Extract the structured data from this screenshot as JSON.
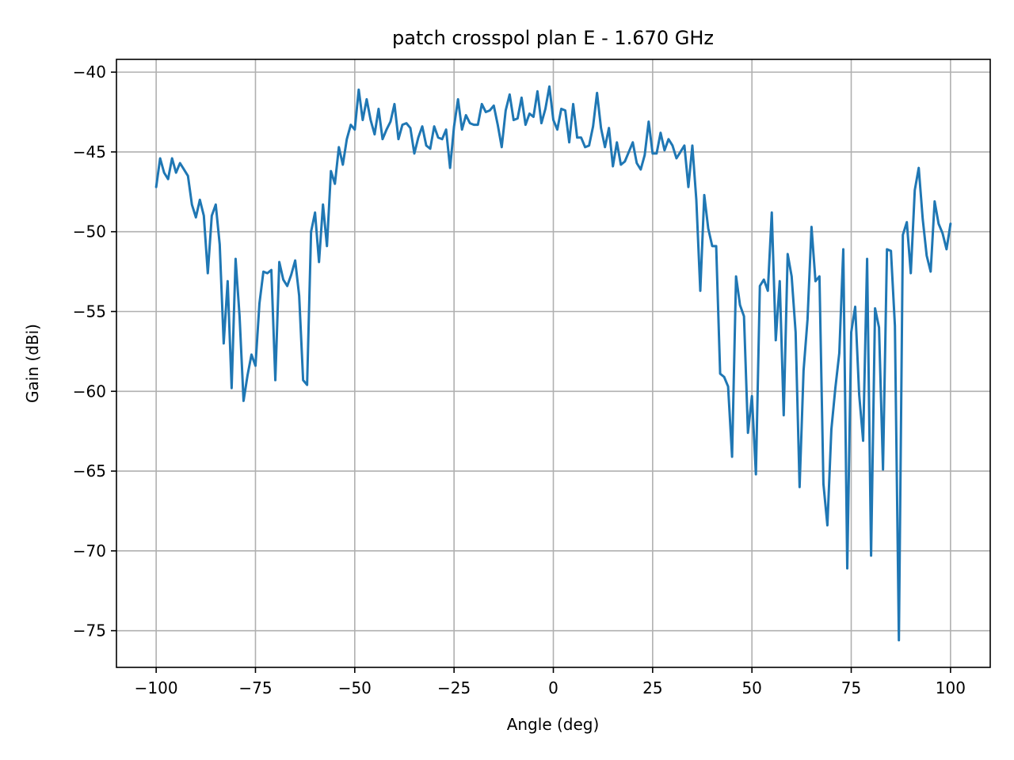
{
  "chart_data": {
    "type": "line",
    "title": "patch crosspol plan E - 1.670 GHz",
    "xlabel": "Angle (deg)",
    "ylabel": "Gain (dBi)",
    "xlim": [
      -110,
      110
    ],
    "ylim": [
      -77.3,
      -39.2
    ],
    "grid": true,
    "series_color": "#1f77b4",
    "x_ticks": [
      {
        "value": -100,
        "label": "−100"
      },
      {
        "value": -75,
        "label": "−75"
      },
      {
        "value": -50,
        "label": "−50"
      },
      {
        "value": -25,
        "label": "−25"
      },
      {
        "value": 0,
        "label": "0"
      },
      {
        "value": 25,
        "label": "25"
      },
      {
        "value": 50,
        "label": "50"
      },
      {
        "value": 75,
        "label": "75"
      },
      {
        "value": 100,
        "label": "100"
      }
    ],
    "y_ticks": [
      {
        "value": -40,
        "label": "−40"
      },
      {
        "value": -45,
        "label": "−45"
      },
      {
        "value": -50,
        "label": "−50"
      },
      {
        "value": -55,
        "label": "−55"
      },
      {
        "value": -60,
        "label": "−60"
      },
      {
        "value": -65,
        "label": "−65"
      },
      {
        "value": -70,
        "label": "−70"
      },
      {
        "value": -75,
        "label": "−75"
      }
    ],
    "series": [
      {
        "x": [
          -100,
          -99,
          -98,
          -97,
          -96,
          -95,
          -94,
          -93,
          -92,
          -91,
          -90,
          -89,
          -88,
          -87,
          -86,
          -85,
          -84,
          -83,
          -82,
          -81,
          -80,
          -79,
          -78,
          -77,
          -76,
          -75,
          -74,
          -73,
          -72,
          -71,
          -70,
          -69,
          -68,
          -67,
          -66,
          -65,
          -64,
          -63,
          -62,
          -61,
          -60,
          -59,
          -58,
          -57,
          -56,
          -55,
          -54,
          -53,
          -52,
          -51,
          -50,
          -49,
          -48,
          -47,
          -46,
          -45,
          -44,
          -43,
          -42,
          -41,
          -40,
          -39,
          -38,
          -37,
          -36,
          -35,
          -34,
          -33,
          -32,
          -31,
          -30,
          -29,
          -28,
          -27,
          -26,
          -25,
          -24,
          -23,
          -22,
          -21,
          -20,
          -19,
          -18,
          -17,
          -16,
          -15,
          -14,
          -13,
          -12,
          -11,
          -10,
          -9,
          -8,
          -7,
          -6,
          -5,
          -4,
          -3,
          -2,
          -1,
          0,
          1,
          2,
          3,
          4,
          5,
          6,
          7,
          8,
          9,
          10,
          11,
          12,
          13,
          14,
          15,
          16,
          17,
          18,
          19,
          20,
          21,
          22,
          23,
          24,
          25,
          26,
          27,
          28,
          29,
          30,
          31,
          32,
          33,
          34,
          35,
          36,
          37,
          38,
          39,
          40,
          41,
          42,
          43,
          44,
          45,
          46,
          47,
          48,
          49,
          50,
          51,
          52,
          53,
          54,
          55,
          56,
          57,
          58,
          59,
          60,
          61,
          62,
          63,
          64,
          65,
          66,
          67,
          68,
          69,
          70,
          71,
          72,
          73,
          74,
          75,
          76,
          77,
          78,
          79,
          80,
          81,
          82,
          83,
          84,
          85,
          86,
          87,
          88,
          89,
          90,
          91,
          92,
          93,
          94,
          95,
          96,
          97,
          98,
          99,
          100
        ],
        "y": [
          -47.2,
          -45.4,
          -46.3,
          -46.7,
          -45.4,
          -46.3,
          -45.7,
          -46.1,
          -46.5,
          -48.3,
          -49.1,
          -48.0,
          -49.0,
          -52.6,
          -49.0,
          -48.3,
          -50.8,
          -57.0,
          -53.1,
          -59.8,
          -51.7,
          -55.3,
          -60.6,
          -59.0,
          -57.7,
          -58.4,
          -54.5,
          -52.5,
          -52.6,
          -52.4,
          -59.3,
          -51.9,
          -53.0,
          -53.4,
          -52.7,
          -51.8,
          -54.0,
          -59.3,
          -59.6,
          -50.0,
          -48.8,
          -51.9,
          -48.3,
          -50.9,
          -46.2,
          -47.0,
          -44.7,
          -45.8,
          -44.2,
          -43.3,
          -43.6,
          -41.1,
          -43.0,
          -41.7,
          -43.0,
          -43.9,
          -42.3,
          -44.2,
          -43.6,
          -43.1,
          -42.0,
          -44.2,
          -43.3,
          -43.2,
          -43.5,
          -45.1,
          -44.1,
          -43.4,
          -44.6,
          -44.8,
          -43.4,
          -44.1,
          -44.2,
          -43.6,
          -46.0,
          -43.4,
          -41.7,
          -43.6,
          -42.7,
          -43.2,
          -43.3,
          -43.3,
          -42.0,
          -42.5,
          -42.4,
          -42.1,
          -43.3,
          -44.7,
          -42.4,
          -41.4,
          -43.0,
          -42.9,
          -41.6,
          -43.3,
          -42.6,
          -42.8,
          -41.2,
          -43.2,
          -42.3,
          -40.9,
          -43.0,
          -43.6,
          -42.3,
          -42.4,
          -44.4,
          -42.0,
          -44.1,
          -44.1,
          -44.7,
          -44.6,
          -43.4,
          -41.3,
          -43.5,
          -44.7,
          -43.5,
          -45.9,
          -44.4,
          -45.8,
          -45.6,
          -45.0,
          -44.4,
          -45.7,
          -46.1,
          -45.2,
          -43.1,
          -45.1,
          -45.1,
          -43.8,
          -44.9,
          -44.2,
          -44.6,
          -45.4,
          -45.0,
          -44.6,
          -47.2,
          -44.6,
          -48.0,
          -53.7,
          -47.7,
          -49.8,
          -50.9,
          -50.9,
          -58.9,
          -59.1,
          -59.7,
          -64.1,
          -52.8,
          -54.6,
          -55.3,
          -62.6,
          -60.3,
          -65.2,
          -53.4,
          -53.0,
          -53.7,
          -48.8,
          -56.8,
          -53.1,
          -61.5,
          -51.4,
          -52.8,
          -56.3,
          -66.0,
          -58.7,
          -55.5,
          -49.7,
          -53.1,
          -52.8,
          -65.8,
          -68.4,
          -62.4,
          -59.8,
          -57.6,
          -51.1,
          -71.1,
          -56.3,
          -54.7,
          -60.2,
          -63.1,
          -51.7,
          -70.3,
          -54.8,
          -56.0,
          -64.9,
          -51.1,
          -51.2,
          -55.9,
          -75.6,
          -50.2,
          -49.4,
          -52.6,
          -47.4,
          -46.0,
          -49.2,
          -51.5,
          -52.5,
          -48.1,
          -49.5,
          -50.1,
          -51.1,
          -49.5
        ]
      }
    ]
  }
}
